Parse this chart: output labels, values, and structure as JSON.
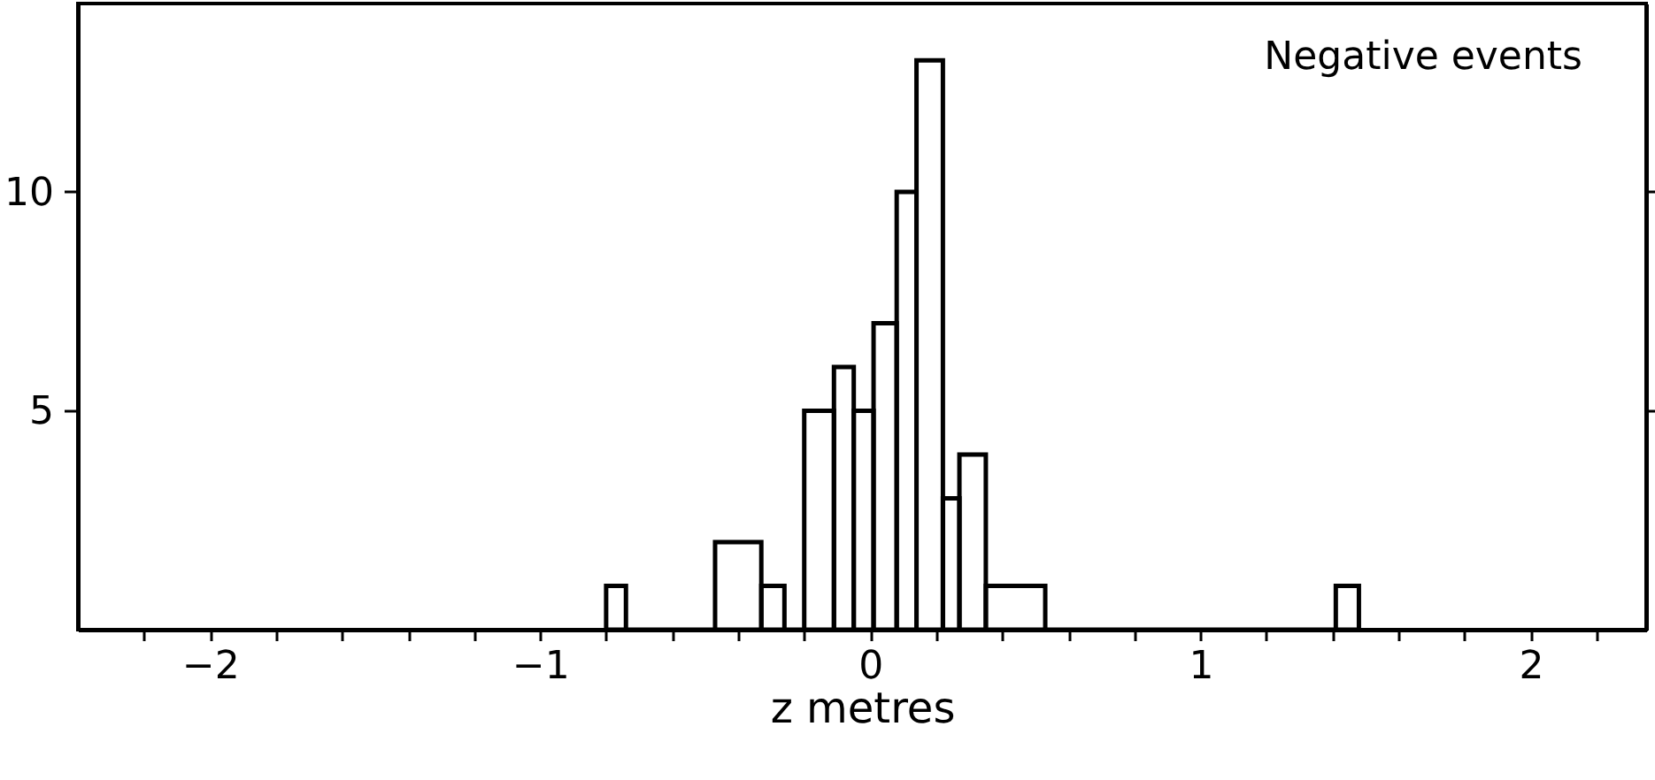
{
  "chart_data": {
    "type": "histogram",
    "xlabel": "z  metres",
    "annotations": [
      "Negative events"
    ],
    "bins": [
      -0.8,
      -0.74,
      -0.47,
      -0.33,
      -0.26,
      -0.2,
      -0.11,
      -0.05,
      0.01,
      0.08,
      0.14,
      0.22,
      0.27,
      0.35,
      0.53,
      1.41,
      1.48
    ],
    "values": [
      1,
      0,
      2,
      1,
      0,
      5,
      6,
      5,
      7,
      10,
      13,
      3,
      4,
      1,
      0,
      1
    ],
    "color": "#000000",
    "xlim": [
      -2.4,
      2.35
    ],
    "ylim": [
      0,
      14.3
    ],
    "xticks": [
      {
        "value": -2.2,
        "label": null
      },
      -2,
      {
        "value": -1.8,
        "label": null
      },
      {
        "value": -1.6,
        "label": null
      },
      {
        "value": -1.4,
        "label": null
      },
      {
        "value": -1.2,
        "label": null
      },
      -1,
      {
        "value": -0.8,
        "label": null
      },
      {
        "value": -0.6,
        "label": null
      },
      {
        "value": -0.4,
        "label": null
      },
      {
        "value": -0.2,
        "label": null
      },
      0,
      {
        "value": 0.2,
        "label": null
      },
      {
        "value": 0.4,
        "label": null
      },
      {
        "value": 0.6,
        "label": null
      },
      {
        "value": 0.8,
        "label": null
      },
      1,
      {
        "value": 1.2,
        "label": null
      },
      {
        "value": 1.4,
        "label": null
      },
      {
        "value": 1.6,
        "label": null
      },
      {
        "value": 1.8,
        "label": null
      },
      2,
      {
        "value": 2.2,
        "label": null
      }
    ],
    "yticks": [
      5,
      10
    ],
    "grid": false
  }
}
